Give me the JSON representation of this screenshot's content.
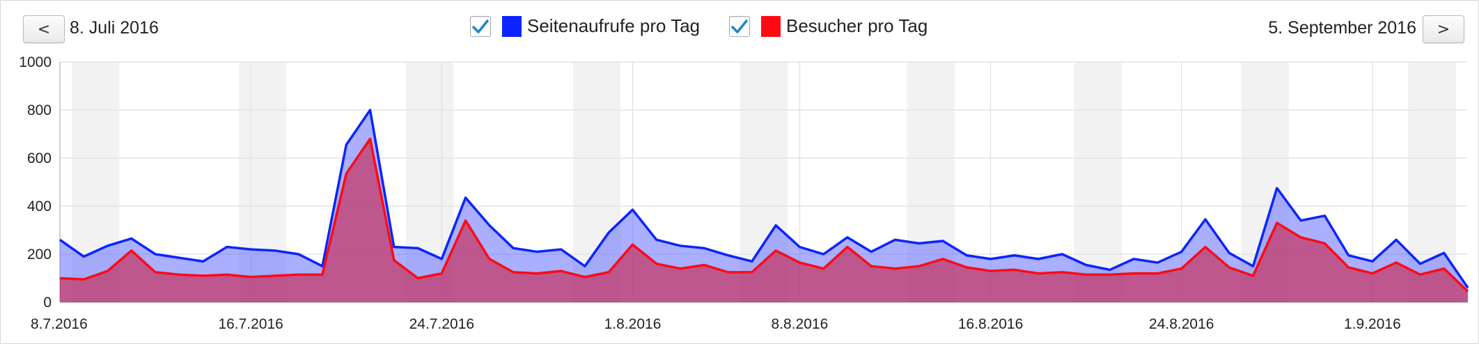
{
  "header": {
    "prev_label": "<",
    "next_label": ">",
    "start_date": "8. Juli 2016",
    "end_date": "5. September 2016"
  },
  "legend": [
    {
      "label": "Seitenaufrufe pro Tag",
      "color": "#0a24ff",
      "checked": true
    },
    {
      "label": "Besucher pro Tag",
      "color": "#ff0a14",
      "checked": true
    }
  ],
  "chart_data": {
    "type": "area",
    "x": [
      "8.7.2016",
      "9.7.2016",
      "10.7.2016",
      "11.7.2016",
      "12.7.2016",
      "13.7.2016",
      "14.7.2016",
      "15.7.2016",
      "16.7.2016",
      "17.7.2016",
      "18.7.2016",
      "19.7.2016",
      "20.7.2016",
      "21.7.2016",
      "22.7.2016",
      "23.7.2016",
      "24.7.2016",
      "25.7.2016",
      "26.7.2016",
      "27.7.2016",
      "28.7.2016",
      "29.7.2016",
      "30.7.2016",
      "31.7.2016",
      "1.8.2016",
      "2.8.2016",
      "3.8.2016",
      "4.8.2016",
      "5.8.2016",
      "6.8.2016",
      "7.8.2016",
      "8.8.2016",
      "9.8.2016",
      "10.8.2016",
      "11.8.2016",
      "12.8.2016",
      "13.8.2016",
      "14.8.2016",
      "15.8.2016",
      "16.8.2016",
      "17.8.2016",
      "18.8.2016",
      "19.8.2016",
      "20.8.2016",
      "21.8.2016",
      "22.8.2016",
      "23.8.2016",
      "24.8.2016",
      "25.8.2016",
      "26.8.2016",
      "27.8.2016",
      "28.8.2016",
      "29.8.2016",
      "30.8.2016",
      "31.8.2016",
      "1.9.2016",
      "2.9.2016",
      "3.9.2016",
      "4.9.2016",
      "5.9.2016"
    ],
    "series": [
      {
        "name": "Seitenaufrufe pro Tag",
        "color": "#0a24ff",
        "fill": "rgba(100,110,255,0.55)",
        "values": [
          260,
          190,
          235,
          265,
          200,
          185,
          170,
          230,
          220,
          215,
          200,
          150,
          655,
          800,
          230,
          225,
          180,
          435,
          320,
          225,
          210,
          220,
          150,
          290,
          385,
          260,
          235,
          225,
          195,
          170,
          320,
          230,
          200,
          270,
          210,
          260,
          245,
          255,
          195,
          180,
          195,
          180,
          200,
          155,
          135,
          180,
          165,
          210,
          345,
          205,
          150,
          475,
          340,
          360,
          195,
          170,
          260,
          160,
          205,
          60
        ]
      },
      {
        "name": "Besucher pro Tag",
        "color": "#ff0a14",
        "fill": "rgba(200,40,80,0.65)",
        "values": [
          100,
          95,
          130,
          215,
          125,
          115,
          110,
          115,
          105,
          110,
          115,
          115,
          535,
          680,
          175,
          100,
          120,
          340,
          180,
          125,
          120,
          130,
          105,
          125,
          240,
          160,
          140,
          155,
          125,
          125,
          215,
          165,
          140,
          230,
          150,
          140,
          150,
          180,
          145,
          130,
          135,
          120,
          125,
          115,
          115,
          120,
          120,
          140,
          230,
          145,
          110,
          330,
          270,
          245,
          145,
          120,
          165,
          115,
          140,
          45
        ]
      }
    ],
    "x_ticks": [
      "8.7.2016",
      "16.7.2016",
      "24.7.2016",
      "1.8.2016",
      "8.8.2016",
      "16.8.2016",
      "24.8.2016",
      "1.9.2016"
    ],
    "y_ticks": [
      "0",
      "200",
      "400",
      "600",
      "800",
      "1000"
    ],
    "ylim": [
      0,
      1000
    ],
    "weekend_shading": true,
    "grid": true
  }
}
